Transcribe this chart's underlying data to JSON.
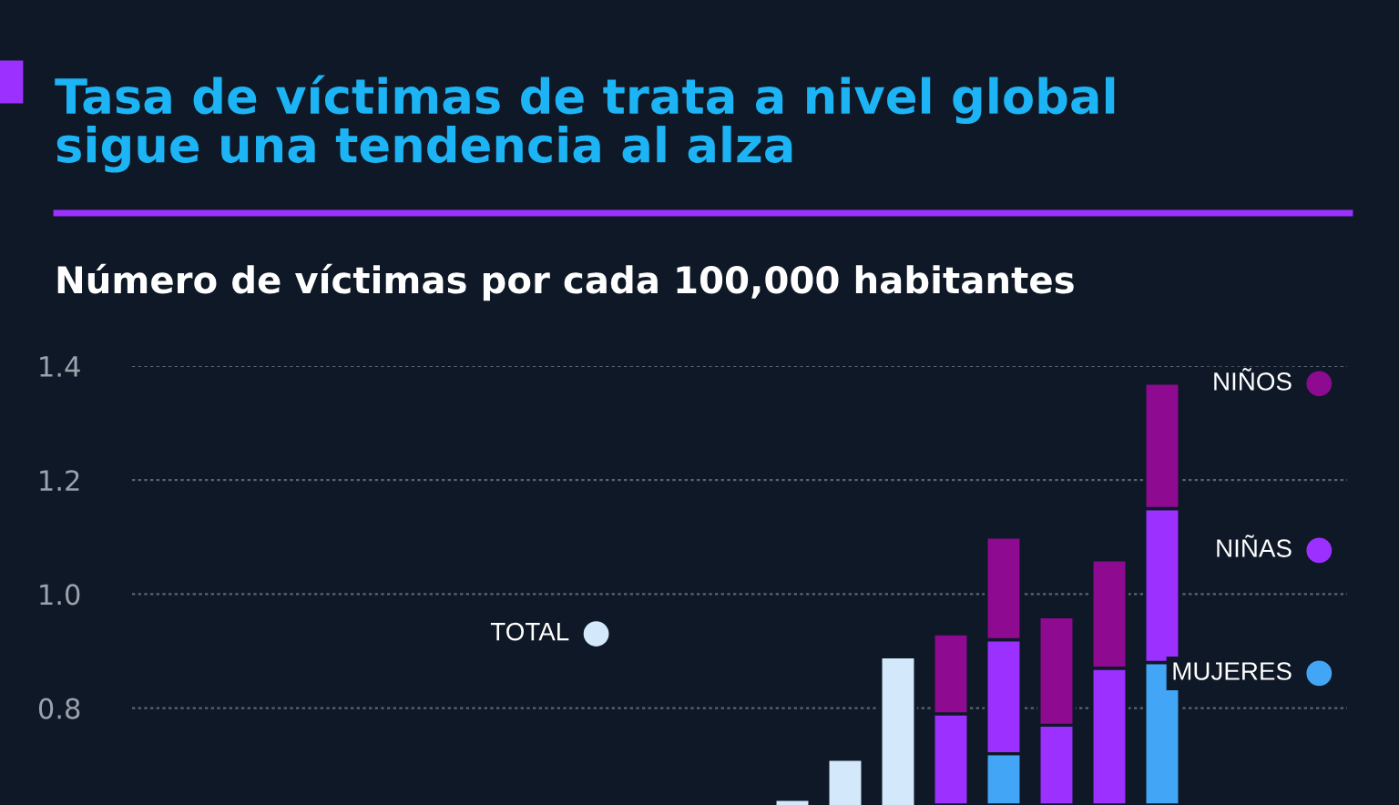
{
  "chart_data": {
    "type": "bar",
    "title": "Tasa de víctimas de trata a nivel global\nsigue una tendencia al alza",
    "subtitle": "Número de víctimas por cada 100,000 habitantes",
    "categories": [
      null,
      null,
      null,
      null,
      null,
      null,
      null,
      null,
      null,
      null,
      null,
      null,
      null,
      null,
      null,
      null,
      null,
      null,
      null,
      null,
      null,
      null,
      null
    ],
    "series": [
      {
        "name": "TOTAL",
        "color": "#d3e8fb",
        "values": [
          null,
          null,
          null,
          null,
          null,
          null,
          null,
          null,
          null,
          null,
          null,
          null,
          0.64,
          0.71,
          0.89,
          null,
          null,
          null,
          null,
          null,
          null,
          null,
          null
        ]
      },
      {
        "name": "MUJERES",
        "color": "#42a5f5",
        "base": [
          null,
          null,
          null,
          null,
          null,
          null,
          null,
          null,
          null,
          null,
          null,
          null,
          null,
          null,
          null,
          null,
          0.63,
          null,
          null,
          0.63,
          null,
          null,
          null
        ],
        "values": [
          null,
          null,
          null,
          null,
          null,
          null,
          null,
          null,
          null,
          null,
          null,
          null,
          null,
          null,
          null,
          null,
          0.09,
          null,
          null,
          0.25,
          null,
          null,
          null
        ]
      },
      {
        "name": "NIÑAS",
        "color": "#9b30ff",
        "base": [
          null,
          null,
          null,
          null,
          null,
          null,
          null,
          null,
          null,
          null,
          null,
          null,
          null,
          null,
          null,
          0.63,
          0.72,
          0.63,
          0.63,
          0.88,
          null,
          null,
          null
        ],
        "values": [
          null,
          null,
          null,
          null,
          null,
          null,
          null,
          null,
          null,
          null,
          null,
          null,
          null,
          null,
          null,
          0.16,
          0.2,
          0.14,
          0.24,
          0.27,
          null,
          null,
          null
        ]
      },
      {
        "name": "NIÑOS",
        "color": "#8e0a90",
        "base": [
          null,
          null,
          null,
          null,
          null,
          null,
          null,
          null,
          null,
          null,
          null,
          null,
          null,
          null,
          null,
          0.79,
          0.92,
          0.77,
          0.87,
          1.15,
          null,
          null,
          null
        ],
        "values": [
          null,
          null,
          null,
          null,
          null,
          null,
          null,
          null,
          null,
          null,
          null,
          null,
          null,
          null,
          null,
          0.14,
          0.18,
          0.19,
          0.19,
          0.22,
          null,
          null,
          null
        ]
      }
    ],
    "legend": "right",
    "ylim": [
      0.63,
      1.4
    ],
    "yticks": [
      0.8,
      {
        "value": 1.0,
        "label": "1.0"
      },
      1.2,
      1.4
    ],
    "grid": "y"
  }
}
